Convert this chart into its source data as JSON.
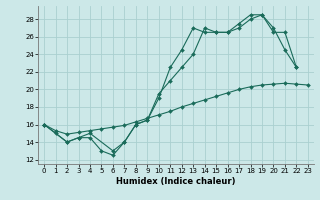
{
  "xlabel": "Humidex (Indice chaleur)",
  "bg_color": "#cce8e8",
  "grid_color": "#aad0d0",
  "line_color": "#1a6b5a",
  "xlim": [
    -0.5,
    23.5
  ],
  "ylim": [
    11.5,
    29.5
  ],
  "xticks": [
    0,
    1,
    2,
    3,
    4,
    5,
    6,
    7,
    8,
    9,
    10,
    11,
    12,
    13,
    14,
    15,
    16,
    17,
    18,
    19,
    20,
    21,
    22,
    23
  ],
  "yticks": [
    12,
    14,
    16,
    18,
    20,
    22,
    24,
    26,
    28
  ],
  "lines": [
    {
      "x": [
        0,
        1,
        2,
        3,
        4,
        5,
        6,
        7,
        8,
        9,
        10,
        11,
        12,
        13,
        14,
        15,
        16,
        17,
        18,
        19,
        20,
        21,
        22
      ],
      "y": [
        16,
        15,
        14,
        14.5,
        14.5,
        13,
        12.5,
        14,
        16,
        16.5,
        19,
        22.5,
        24.5,
        27,
        26.5,
        26.5,
        26.5,
        27.5,
        28.5,
        28.5,
        27,
        24.5,
        22.5
      ]
    },
    {
      "x": [
        0,
        2,
        3,
        4,
        6,
        7,
        8,
        9,
        10,
        11,
        12,
        13,
        14,
        15,
        16,
        17,
        18,
        19,
        20,
        21,
        22
      ],
      "y": [
        16,
        14,
        14.5,
        15,
        13,
        14,
        16,
        16.5,
        19.5,
        21,
        22.5,
        24,
        27,
        26.5,
        26.5,
        27,
        28,
        28.5,
        26.5,
        26.5,
        22.5
      ]
    },
    {
      "x": [
        0,
        1,
        2,
        3,
        4,
        5,
        6,
        7,
        8,
        9,
        10,
        11,
        12,
        13,
        14,
        15,
        16,
        17,
        18,
        19,
        20,
        21,
        22,
        23
      ],
      "y": [
        16,
        15.3,
        14.9,
        15.1,
        15.3,
        15.5,
        15.7,
        15.9,
        16.3,
        16.7,
        17.1,
        17.5,
        18.0,
        18.4,
        18.8,
        19.2,
        19.6,
        20.0,
        20.3,
        20.5,
        20.6,
        20.7,
        20.6,
        20.5
      ]
    }
  ]
}
